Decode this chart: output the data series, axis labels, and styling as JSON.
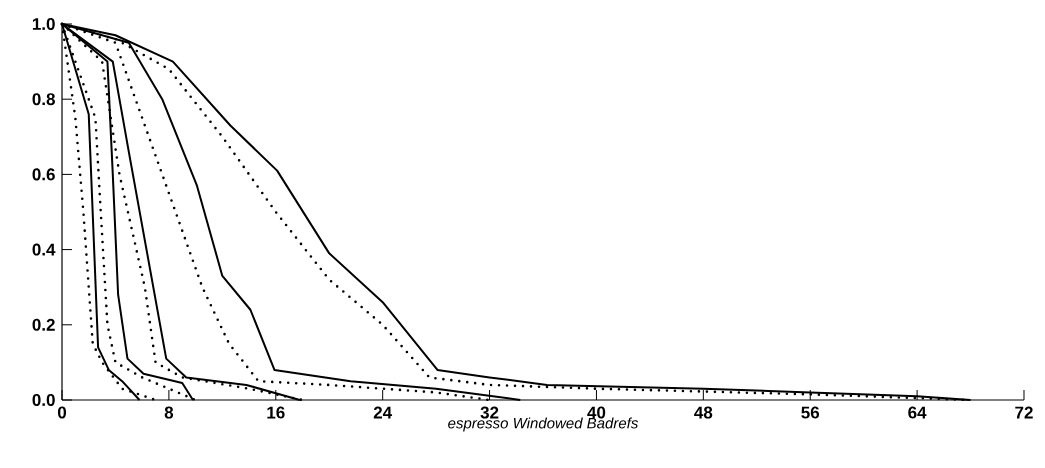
{
  "chart_data": {
    "type": "line",
    "xlabel": "espresso Windowed Badrefs",
    "xlim": [
      0,
      72
    ],
    "ylim": [
      0,
      1
    ],
    "xticks": [
      0,
      8,
      16,
      24,
      32,
      40,
      48,
      56,
      64,
      72
    ],
    "yticks": [
      {
        "value": 0,
        "label": "0.0"
      },
      {
        "value": 0.2,
        "label": "0.2"
      },
      {
        "value": 0.4,
        "label": "0.4"
      },
      {
        "value": 0.6,
        "label": "0.6"
      },
      {
        "value": 0.8,
        "label": "0.8"
      },
      {
        "value": 1,
        "label": "1.0"
      }
    ],
    "grid": false,
    "marker": "none",
    "series": [
      {
        "color": "#000000",
        "line_style": "solid",
        "x": [
          0,
          2,
          2.7,
          3.5,
          4.5,
          5.8
        ],
        "values": [
          1,
          0.76,
          0.14,
          0.08,
          0.05,
          0
        ]
      },
      {
        "color": "#000000",
        "line_style": "dotted",
        "x": [
          0,
          1,
          1.6,
          2.3,
          3,
          4.5,
          7
        ],
        "values": [
          1,
          0.75,
          0.5,
          0.15,
          0.1,
          0.03,
          0
        ]
      },
      {
        "color": "#000000",
        "line_style": "solid",
        "x": [
          0,
          3.4,
          3.8,
          4.2,
          4.9,
          6.1,
          9,
          9.8
        ],
        "values": [
          1,
          0.9,
          0.6,
          0.28,
          0.11,
          0.07,
          0.045,
          0
        ]
      },
      {
        "color": "#000000",
        "line_style": "dotted",
        "x": [
          0,
          2.5,
          2.9,
          3.4,
          4,
          6,
          8,
          10
        ],
        "values": [
          1,
          0.75,
          0.5,
          0.2,
          0.1,
          0.06,
          0.03,
          0
        ]
      },
      {
        "color": "#000000",
        "line_style": "solid",
        "x": [
          0,
          3.8,
          5,
          7.8,
          9.3,
          13.8,
          17.8
        ],
        "values": [
          1,
          0.9,
          0.66,
          0.11,
          0.06,
          0.04,
          0
        ]
      },
      {
        "color": "#000000",
        "line_style": "dotted",
        "x": [
          0,
          3,
          4.3,
          6.2,
          7,
          9,
          14,
          18
        ],
        "values": [
          1,
          0.9,
          0.6,
          0.3,
          0.1,
          0.06,
          0.03,
          0
        ]
      },
      {
        "color": "#000000",
        "line_style": "solid",
        "x": [
          0,
          5,
          7.5,
          10.1,
          12,
          14.1,
          15.9,
          21.6,
          28,
          34.3
        ],
        "values": [
          1,
          0.95,
          0.8,
          0.57,
          0.33,
          0.24,
          0.08,
          0.05,
          0.03,
          0
        ]
      },
      {
        "color": "#000000",
        "line_style": "dotted",
        "x": [
          0,
          4,
          6,
          8,
          10.5,
          12.5,
          14.7,
          20,
          28,
          32
        ],
        "values": [
          1,
          0.95,
          0.75,
          0.55,
          0.3,
          0.15,
          0.05,
          0.04,
          0.02,
          0
        ]
      },
      {
        "color": "#000000",
        "line_style": "solid",
        "x": [
          0,
          4,
          8.3,
          12.6,
          16.1,
          20,
          24,
          28.1,
          32,
          36.3,
          48,
          56,
          64,
          68
        ],
        "values": [
          1,
          0.97,
          0.9,
          0.73,
          0.61,
          0.39,
          0.26,
          0.08,
          0.06,
          0.04,
          0.03,
          0.02,
          0.01,
          0
        ]
      },
      {
        "color": "#000000",
        "line_style": "dotted",
        "x": [
          0,
          4,
          8,
          12,
          16,
          20,
          24,
          27.5,
          32,
          40,
          56,
          64,
          68
        ],
        "values": [
          1,
          0.96,
          0.88,
          0.7,
          0.5,
          0.32,
          0.2,
          0.06,
          0.04,
          0.03,
          0.015,
          0.005,
          0
        ]
      }
    ]
  }
}
